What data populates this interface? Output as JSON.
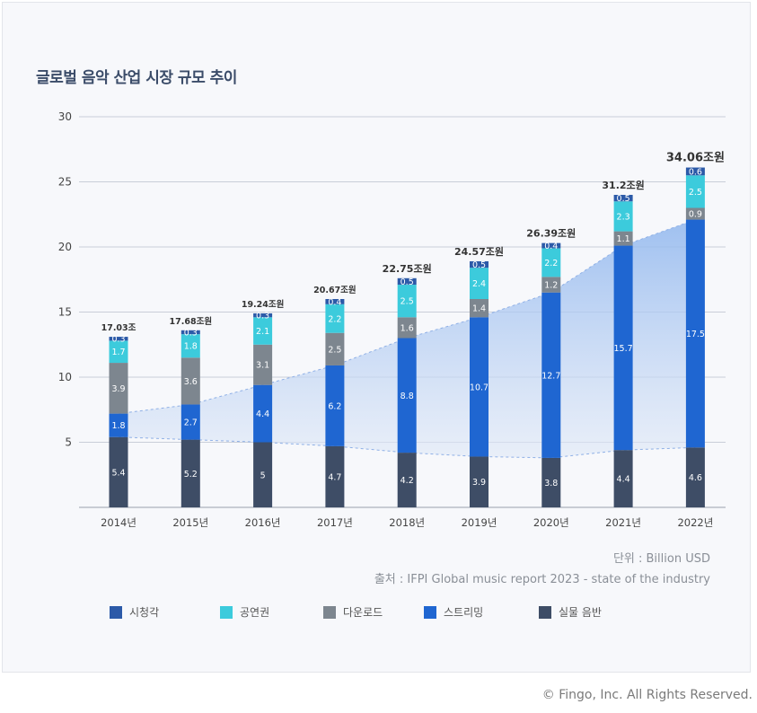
{
  "chart_data": {
    "type": "bar",
    "stacked": true,
    "title": "글로벌 음악 산업 시장 규모 추이",
    "categories": [
      "2014년",
      "2015년",
      "2016년",
      "2017년",
      "2018년",
      "2019년",
      "2020년",
      "2021년",
      "2022년"
    ],
    "yticks": [
      "5",
      "10",
      "15",
      "20",
      "25",
      "30"
    ],
    "ylim": [
      0,
      30
    ],
    "totals": [
      "17.03조",
      "17.68조원",
      "19.24조원",
      "20.67조원",
      "22.75조원",
      "24.57조원",
      "26.39조원",
      "31.2조원",
      "34.06조원"
    ],
    "series": [
      {
        "name": "실물 음반",
        "color": "#3e4d66",
        "values": [
          5.4,
          5.2,
          5.0,
          4.7,
          4.2,
          3.9,
          3.8,
          4.4,
          4.6
        ]
      },
      {
        "name": "스트리밍",
        "color": "#1f66d1",
        "values": [
          1.8,
          2.7,
          4.4,
          6.2,
          8.8,
          10.7,
          12.7,
          15.7,
          17.5
        ]
      },
      {
        "name": "다운로드",
        "color": "#7d868f",
        "values": [
          3.9,
          3.6,
          3.1,
          2.5,
          1.6,
          1.4,
          1.2,
          1.1,
          0.9
        ]
      },
      {
        "name": "공연권",
        "color": "#3ccbdc",
        "values": [
          1.7,
          1.8,
          2.1,
          2.2,
          2.5,
          2.4,
          2.2,
          2.3,
          2.5
        ]
      },
      {
        "name": "시청각",
        "color": "#2c5aa8",
        "values": [
          0.3,
          0.3,
          0.3,
          0.4,
          0.5,
          0.5,
          0.4,
          0.5,
          0.6
        ]
      }
    ],
    "legend_order": [
      "시청각",
      "공연권",
      "다운로드",
      "스트리밍",
      "실물 음반"
    ],
    "legend_placement": "bottom",
    "grid": true
  },
  "unit_label": "단위 : Billion USD",
  "source_label": "출처 : IFPI Global music report 2023 - state of the industry",
  "copyright": "© Fingo, Inc. All Rights Reserved."
}
